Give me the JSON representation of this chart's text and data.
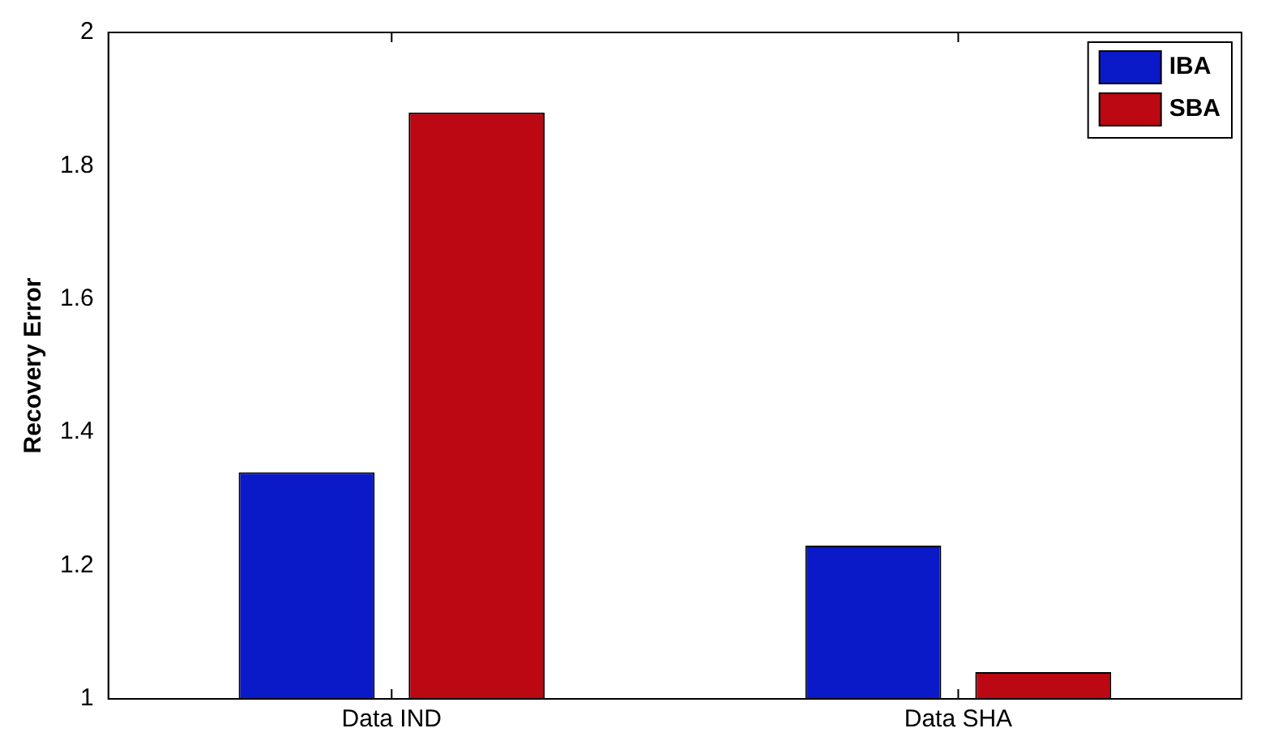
{
  "chart_data": {
    "type": "bar",
    "ylabel": "Recovery Error",
    "categories": [
      "Data IND",
      "Data SHA"
    ],
    "series": [
      {
        "name": "IBA",
        "color": "#0a1ac8",
        "values": [
          1.34,
          1.23
        ]
      },
      {
        "name": "SBA",
        "color": "#bb0812",
        "values": [
          1.88,
          1.04
        ]
      }
    ],
    "ylim": [
      1,
      2
    ],
    "yticks": [
      1,
      1.2,
      1.4,
      1.6,
      1.8,
      2
    ],
    "grid": false,
    "legend": "top right"
  }
}
